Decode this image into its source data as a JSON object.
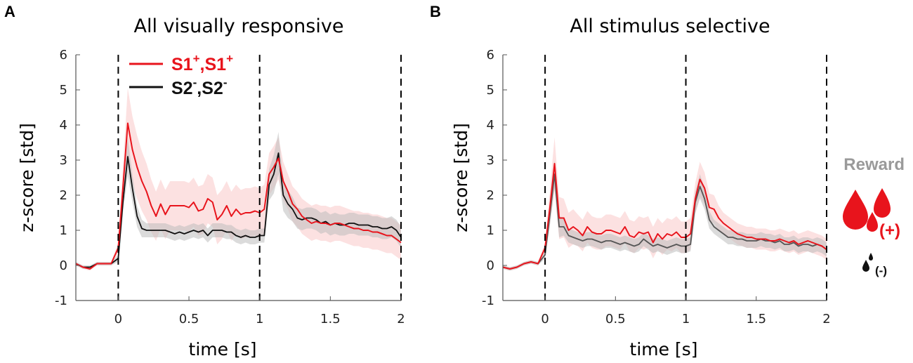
{
  "figure": {
    "colors": {
      "s1": "#e8141c",
      "s1_band": "#fcdcdc",
      "s2": "#111111",
      "s2_line_b": "#555555",
      "s2_band": "#bdbdbd",
      "reward_text": "#9a9a9a",
      "positive_drop": "#e8141c",
      "negative_drop": "#111111"
    },
    "legend": {
      "s1": {
        "base": "S1",
        "sup": "+",
        "sep": ","
      },
      "s2": {
        "base": "S2",
        "sup": "-",
        "sep": ","
      }
    },
    "reward": {
      "title": "Reward",
      "positive": "(+)",
      "negative": "(-)",
      "positive_icon": "large-red-drops-icon",
      "negative_icon": "small-black-drop-icon"
    }
  },
  "chart_data": [
    {
      "type": "line",
      "panel": "A",
      "title": "All visually responsive",
      "xlabel": "time [s]",
      "ylabel": "z-score [std]",
      "xlim": [
        -0.3,
        2
      ],
      "ylim": [
        -1,
        6
      ],
      "xticks": [
        0,
        0.5,
        1,
        1.5,
        2
      ],
      "xtick_labels": [
        "0",
        "0.5",
        "1",
        "1.5",
        "2"
      ],
      "yticks": [
        -1,
        0,
        1,
        2,
        3,
        4,
        5,
        6
      ],
      "ytick_labels": [
        "-1",
        "0",
        "1",
        "2",
        "3",
        "4",
        "5",
        "6"
      ],
      "vlines": [
        0,
        1,
        2
      ],
      "series": [
        {
          "name": "S1+,S1+",
          "key": "s1",
          "x": [
            -0.3,
            -0.25,
            -0.2,
            -0.15,
            -0.1,
            -0.05,
            0,
            0.033,
            0.067,
            0.1,
            0.133,
            0.167,
            0.2,
            0.233,
            0.267,
            0.3,
            0.333,
            0.367,
            0.4,
            0.433,
            0.467,
            0.5,
            0.533,
            0.567,
            0.6,
            0.633,
            0.667,
            0.7,
            0.733,
            0.767,
            0.8,
            0.833,
            0.867,
            0.9,
            0.933,
            0.967,
            1.0,
            1.033,
            1.067,
            1.1,
            1.133,
            1.167,
            1.2,
            1.233,
            1.267,
            1.3,
            1.333,
            1.367,
            1.4,
            1.433,
            1.467,
            1.5,
            1.533,
            1.567,
            1.6,
            1.633,
            1.667,
            1.7,
            1.733,
            1.767,
            1.8,
            1.833,
            1.867,
            1.9,
            1.933,
            1.967,
            2.0
          ],
          "y": [
            0.05,
            -0.05,
            -0.1,
            0.05,
            0.05,
            0.05,
            0.5,
            2.2,
            4.05,
            3.3,
            2.8,
            2.4,
            2.1,
            1.7,
            1.4,
            1.75,
            1.45,
            1.7,
            1.7,
            1.7,
            1.7,
            1.65,
            1.8,
            1.55,
            1.6,
            1.9,
            1.8,
            1.3,
            1.45,
            1.7,
            1.4,
            1.6,
            1.45,
            1.5,
            1.5,
            1.55,
            1.5,
            1.6,
            2.6,
            2.8,
            3.05,
            2.4,
            2.1,
            1.75,
            1.6,
            1.4,
            1.3,
            1.2,
            1.25,
            1.2,
            1.2,
            1.15,
            1.2,
            1.2,
            1.15,
            1.1,
            1.05,
            1.05,
            1.0,
            1.0,
            0.95,
            0.95,
            0.9,
            0.85,
            0.85,
            0.75,
            0.65
          ],
          "band_halfwidth": [
            0.05,
            0.05,
            0.05,
            0.05,
            0.05,
            0.05,
            0.15,
            0.6,
            1.0,
            0.95,
            0.9,
            0.85,
            0.8,
            0.75,
            0.7,
            0.7,
            0.7,
            0.7,
            0.7,
            0.7,
            0.7,
            0.7,
            0.7,
            0.7,
            0.7,
            0.7,
            0.7,
            0.7,
            0.7,
            0.7,
            0.7,
            0.7,
            0.7,
            0.7,
            0.7,
            0.7,
            0.7,
            0.7,
            0.6,
            0.6,
            0.6,
            0.55,
            0.5,
            0.5,
            0.5,
            0.5,
            0.5,
            0.5,
            0.5,
            0.5,
            0.5,
            0.5,
            0.5,
            0.5,
            0.5,
            0.5,
            0.5,
            0.5,
            0.5,
            0.5,
            0.5,
            0.5,
            0.5,
            0.5,
            0.5,
            0.5,
            0.5
          ]
        },
        {
          "name": "S2-,S2-",
          "key": "s2",
          "x": [
            -0.3,
            -0.25,
            -0.2,
            -0.15,
            -0.1,
            -0.05,
            0,
            0.033,
            0.067,
            0.1,
            0.133,
            0.167,
            0.2,
            0.233,
            0.267,
            0.3,
            0.333,
            0.367,
            0.4,
            0.433,
            0.467,
            0.5,
            0.533,
            0.567,
            0.6,
            0.633,
            0.667,
            0.7,
            0.733,
            0.767,
            0.8,
            0.833,
            0.867,
            0.9,
            0.933,
            0.967,
            1.0,
            1.033,
            1.067,
            1.1,
            1.133,
            1.167,
            1.2,
            1.233,
            1.267,
            1.3,
            1.333,
            1.367,
            1.4,
            1.433,
            1.467,
            1.5,
            1.533,
            1.567,
            1.6,
            1.633,
            1.667,
            1.7,
            1.733,
            1.767,
            1.8,
            1.833,
            1.867,
            1.9,
            1.933,
            1.967,
            2.0
          ],
          "y": [
            0.05,
            -0.05,
            -0.05,
            0.05,
            0.05,
            0.05,
            0.2,
            1.8,
            3.1,
            2.2,
            1.4,
            1.05,
            1.0,
            1.0,
            1.0,
            1.0,
            1.0,
            0.95,
            0.9,
            0.95,
            0.9,
            0.95,
            1.0,
            0.95,
            1.0,
            0.85,
            1.0,
            1.0,
            1.0,
            0.95,
            0.95,
            0.85,
            0.8,
            0.85,
            0.8,
            0.8,
            0.85,
            0.85,
            2.3,
            2.6,
            3.2,
            2.0,
            1.75,
            1.6,
            1.35,
            1.3,
            1.35,
            1.35,
            1.3,
            1.2,
            1.25,
            1.15,
            1.2,
            1.15,
            1.15,
            1.2,
            1.2,
            1.15,
            1.15,
            1.15,
            1.1,
            1.1,
            1.05,
            1.05,
            1.1,
            1.0,
            0.8
          ],
          "band_halfwidth": [
            0.05,
            0.05,
            0.05,
            0.05,
            0.05,
            0.05,
            0.1,
            0.3,
            0.55,
            0.4,
            0.3,
            0.25,
            0.2,
            0.2,
            0.2,
            0.2,
            0.2,
            0.2,
            0.2,
            0.2,
            0.2,
            0.2,
            0.2,
            0.2,
            0.2,
            0.2,
            0.2,
            0.2,
            0.2,
            0.2,
            0.2,
            0.2,
            0.2,
            0.2,
            0.2,
            0.2,
            0.2,
            0.2,
            0.45,
            0.55,
            0.6,
            0.45,
            0.4,
            0.35,
            0.3,
            0.3,
            0.3,
            0.3,
            0.3,
            0.3,
            0.3,
            0.3,
            0.3,
            0.3,
            0.3,
            0.3,
            0.3,
            0.3,
            0.3,
            0.3,
            0.3,
            0.3,
            0.3,
            0.3,
            0.3,
            0.3,
            0.3
          ]
        }
      ]
    },
    {
      "type": "line",
      "panel": "B",
      "title": "All stimulus selective",
      "xlabel": "time [s]",
      "ylabel": "z-score [std]",
      "xlim": [
        -0.3,
        2
      ],
      "ylim": [
        -1,
        6
      ],
      "xticks": [
        0,
        0.5,
        1,
        1.5,
        2
      ],
      "xtick_labels": [
        "0",
        "0.5",
        "1",
        "1.5",
        "2"
      ],
      "yticks": [
        -1,
        0,
        1,
        2,
        3,
        4,
        5,
        6
      ],
      "ytick_labels": [
        "-1",
        "0",
        "1",
        "2",
        "3",
        "4",
        "5",
        "6"
      ],
      "vlines": [
        0,
        1,
        2
      ],
      "series": [
        {
          "name": "S1+,S1+",
          "key": "s1",
          "x": [
            -0.3,
            -0.25,
            -0.2,
            -0.15,
            -0.1,
            -0.05,
            0,
            0.033,
            0.067,
            0.1,
            0.133,
            0.167,
            0.2,
            0.233,
            0.267,
            0.3,
            0.333,
            0.367,
            0.4,
            0.433,
            0.467,
            0.5,
            0.533,
            0.567,
            0.6,
            0.633,
            0.667,
            0.7,
            0.733,
            0.767,
            0.8,
            0.833,
            0.867,
            0.9,
            0.933,
            0.967,
            1.0,
            1.033,
            1.067,
            1.1,
            1.133,
            1.167,
            1.2,
            1.233,
            1.267,
            1.3,
            1.333,
            1.367,
            1.4,
            1.433,
            1.467,
            1.5,
            1.533,
            1.567,
            1.6,
            1.633,
            1.667,
            1.7,
            1.733,
            1.767,
            1.8,
            1.833,
            1.867,
            1.9,
            1.933,
            1.967,
            2.0
          ],
          "y": [
            -0.05,
            -0.1,
            -0.05,
            0.05,
            0.1,
            0.05,
            0.5,
            1.6,
            2.9,
            1.35,
            1.35,
            1.0,
            1.1,
            1.0,
            0.85,
            1.1,
            0.95,
            0.9,
            0.9,
            1.0,
            1.0,
            0.95,
            0.9,
            1.1,
            0.85,
            0.8,
            0.95,
            0.9,
            0.95,
            0.65,
            0.9,
            0.75,
            0.9,
            0.85,
            0.95,
            0.8,
            0.8,
            0.9,
            1.9,
            2.45,
            2.2,
            1.65,
            1.6,
            1.35,
            1.2,
            1.1,
            1.0,
            0.9,
            0.85,
            0.8,
            0.8,
            0.75,
            0.75,
            0.75,
            0.7,
            0.7,
            0.75,
            0.7,
            0.65,
            0.7,
            0.6,
            0.65,
            0.7,
            0.65,
            0.6,
            0.55,
            0.45
          ],
          "band_halfwidth": [
            0.05,
            0.05,
            0.05,
            0.05,
            0.05,
            0.05,
            0.15,
            0.5,
            0.75,
            0.6,
            0.55,
            0.5,
            0.5,
            0.45,
            0.45,
            0.45,
            0.45,
            0.45,
            0.45,
            0.45,
            0.45,
            0.45,
            0.45,
            0.45,
            0.45,
            0.45,
            0.45,
            0.45,
            0.45,
            0.45,
            0.45,
            0.45,
            0.45,
            0.45,
            0.45,
            0.45,
            0.45,
            0.45,
            0.45,
            0.5,
            0.45,
            0.4,
            0.4,
            0.35,
            0.3,
            0.3,
            0.3,
            0.3,
            0.3,
            0.3,
            0.3,
            0.3,
            0.3,
            0.3,
            0.3,
            0.3,
            0.3,
            0.3,
            0.3,
            0.3,
            0.3,
            0.3,
            0.3,
            0.3,
            0.3,
            0.3,
            0.3
          ]
        },
        {
          "name": "S2-,S2-",
          "key": "s2",
          "x": [
            -0.3,
            -0.25,
            -0.2,
            -0.15,
            -0.1,
            -0.05,
            0,
            0.033,
            0.067,
            0.1,
            0.133,
            0.167,
            0.2,
            0.233,
            0.267,
            0.3,
            0.333,
            0.367,
            0.4,
            0.433,
            0.467,
            0.5,
            0.533,
            0.567,
            0.6,
            0.633,
            0.667,
            0.7,
            0.733,
            0.767,
            0.8,
            0.833,
            0.867,
            0.9,
            0.933,
            0.967,
            1.0,
            1.033,
            1.067,
            1.1,
            1.133,
            1.167,
            1.2,
            1.233,
            1.267,
            1.3,
            1.333,
            1.367,
            1.4,
            1.433,
            1.467,
            1.5,
            1.533,
            1.567,
            1.6,
            1.633,
            1.667,
            1.7,
            1.733,
            1.767,
            1.8,
            1.833,
            1.867,
            1.9,
            1.933,
            1.967,
            2.0
          ],
          "y": [
            -0.05,
            -0.1,
            -0.05,
            0.05,
            0.1,
            0.05,
            0.3,
            1.4,
            2.6,
            1.1,
            1.1,
            0.85,
            0.8,
            0.75,
            0.7,
            0.75,
            0.75,
            0.7,
            0.65,
            0.7,
            0.7,
            0.65,
            0.6,
            0.65,
            0.6,
            0.55,
            0.6,
            0.75,
            0.65,
            0.55,
            0.6,
            0.55,
            0.5,
            0.55,
            0.6,
            0.55,
            0.55,
            0.6,
            1.8,
            2.25,
            1.9,
            1.3,
            1.1,
            1.0,
            0.9,
            0.8,
            0.8,
            0.75,
            0.75,
            0.7,
            0.7,
            0.7,
            0.75,
            0.7,
            0.7,
            0.65,
            0.7,
            0.6,
            0.6,
            0.65,
            0.55,
            0.6,
            0.6,
            0.55,
            0.6,
            0.55,
            0.45
          ],
          "band_halfwidth": [
            0.05,
            0.05,
            0.05,
            0.05,
            0.05,
            0.05,
            0.1,
            0.3,
            0.4,
            0.3,
            0.25,
            0.2,
            0.2,
            0.2,
            0.2,
            0.2,
            0.2,
            0.2,
            0.2,
            0.2,
            0.2,
            0.2,
            0.2,
            0.2,
            0.2,
            0.2,
            0.2,
            0.2,
            0.2,
            0.2,
            0.2,
            0.2,
            0.2,
            0.2,
            0.2,
            0.2,
            0.2,
            0.2,
            0.3,
            0.35,
            0.3,
            0.25,
            0.2,
            0.2,
            0.2,
            0.2,
            0.2,
            0.2,
            0.2,
            0.2,
            0.2,
            0.2,
            0.2,
            0.2,
            0.2,
            0.2,
            0.2,
            0.2,
            0.2,
            0.2,
            0.2,
            0.2,
            0.2,
            0.2,
            0.2,
            0.2,
            0.2
          ]
        }
      ]
    }
  ]
}
